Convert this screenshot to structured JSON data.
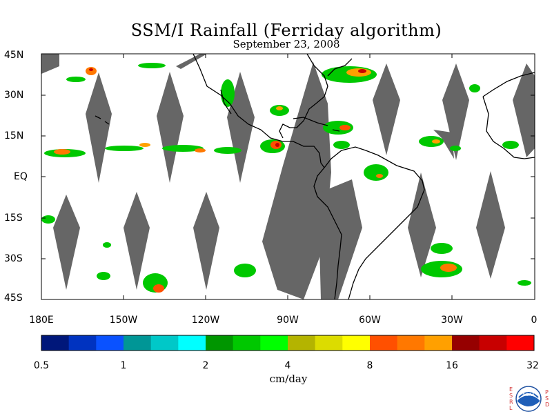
{
  "title": "SSM/I Rainfall (Ferriday algorithm)",
  "subtitle": "September 23, 2008",
  "lat_labels": [
    "45N",
    "30N",
    "15N",
    "EQ",
    "15S",
    "30S",
    "45S"
  ],
  "lon_labels": [
    "180E",
    "150W",
    "120W",
    "90W",
    "60W",
    "30W",
    "0"
  ],
  "colorbar": {
    "colors": [
      "#00177a",
      "#0033c0",
      "#0a52ff",
      "#009696",
      "#00c8c8",
      "#00ffff",
      "#009600",
      "#00c800",
      "#00ff00",
      "#b4b400",
      "#dcdc00",
      "#ffff00",
      "#ff5000",
      "#ff7800",
      "#ffa000",
      "#960000",
      "#c80000",
      "#ff0000"
    ],
    "labels": [
      "0.5",
      "1",
      "2",
      "4",
      "8",
      "16",
      "32"
    ]
  },
  "units": "cm/day",
  "logo": {
    "left_letters": "ESRL",
    "right_letters": "PSD",
    "center": "NOAA"
  },
  "colors": {
    "swath_gap": "#666666",
    "coastline": "#000000"
  }
}
